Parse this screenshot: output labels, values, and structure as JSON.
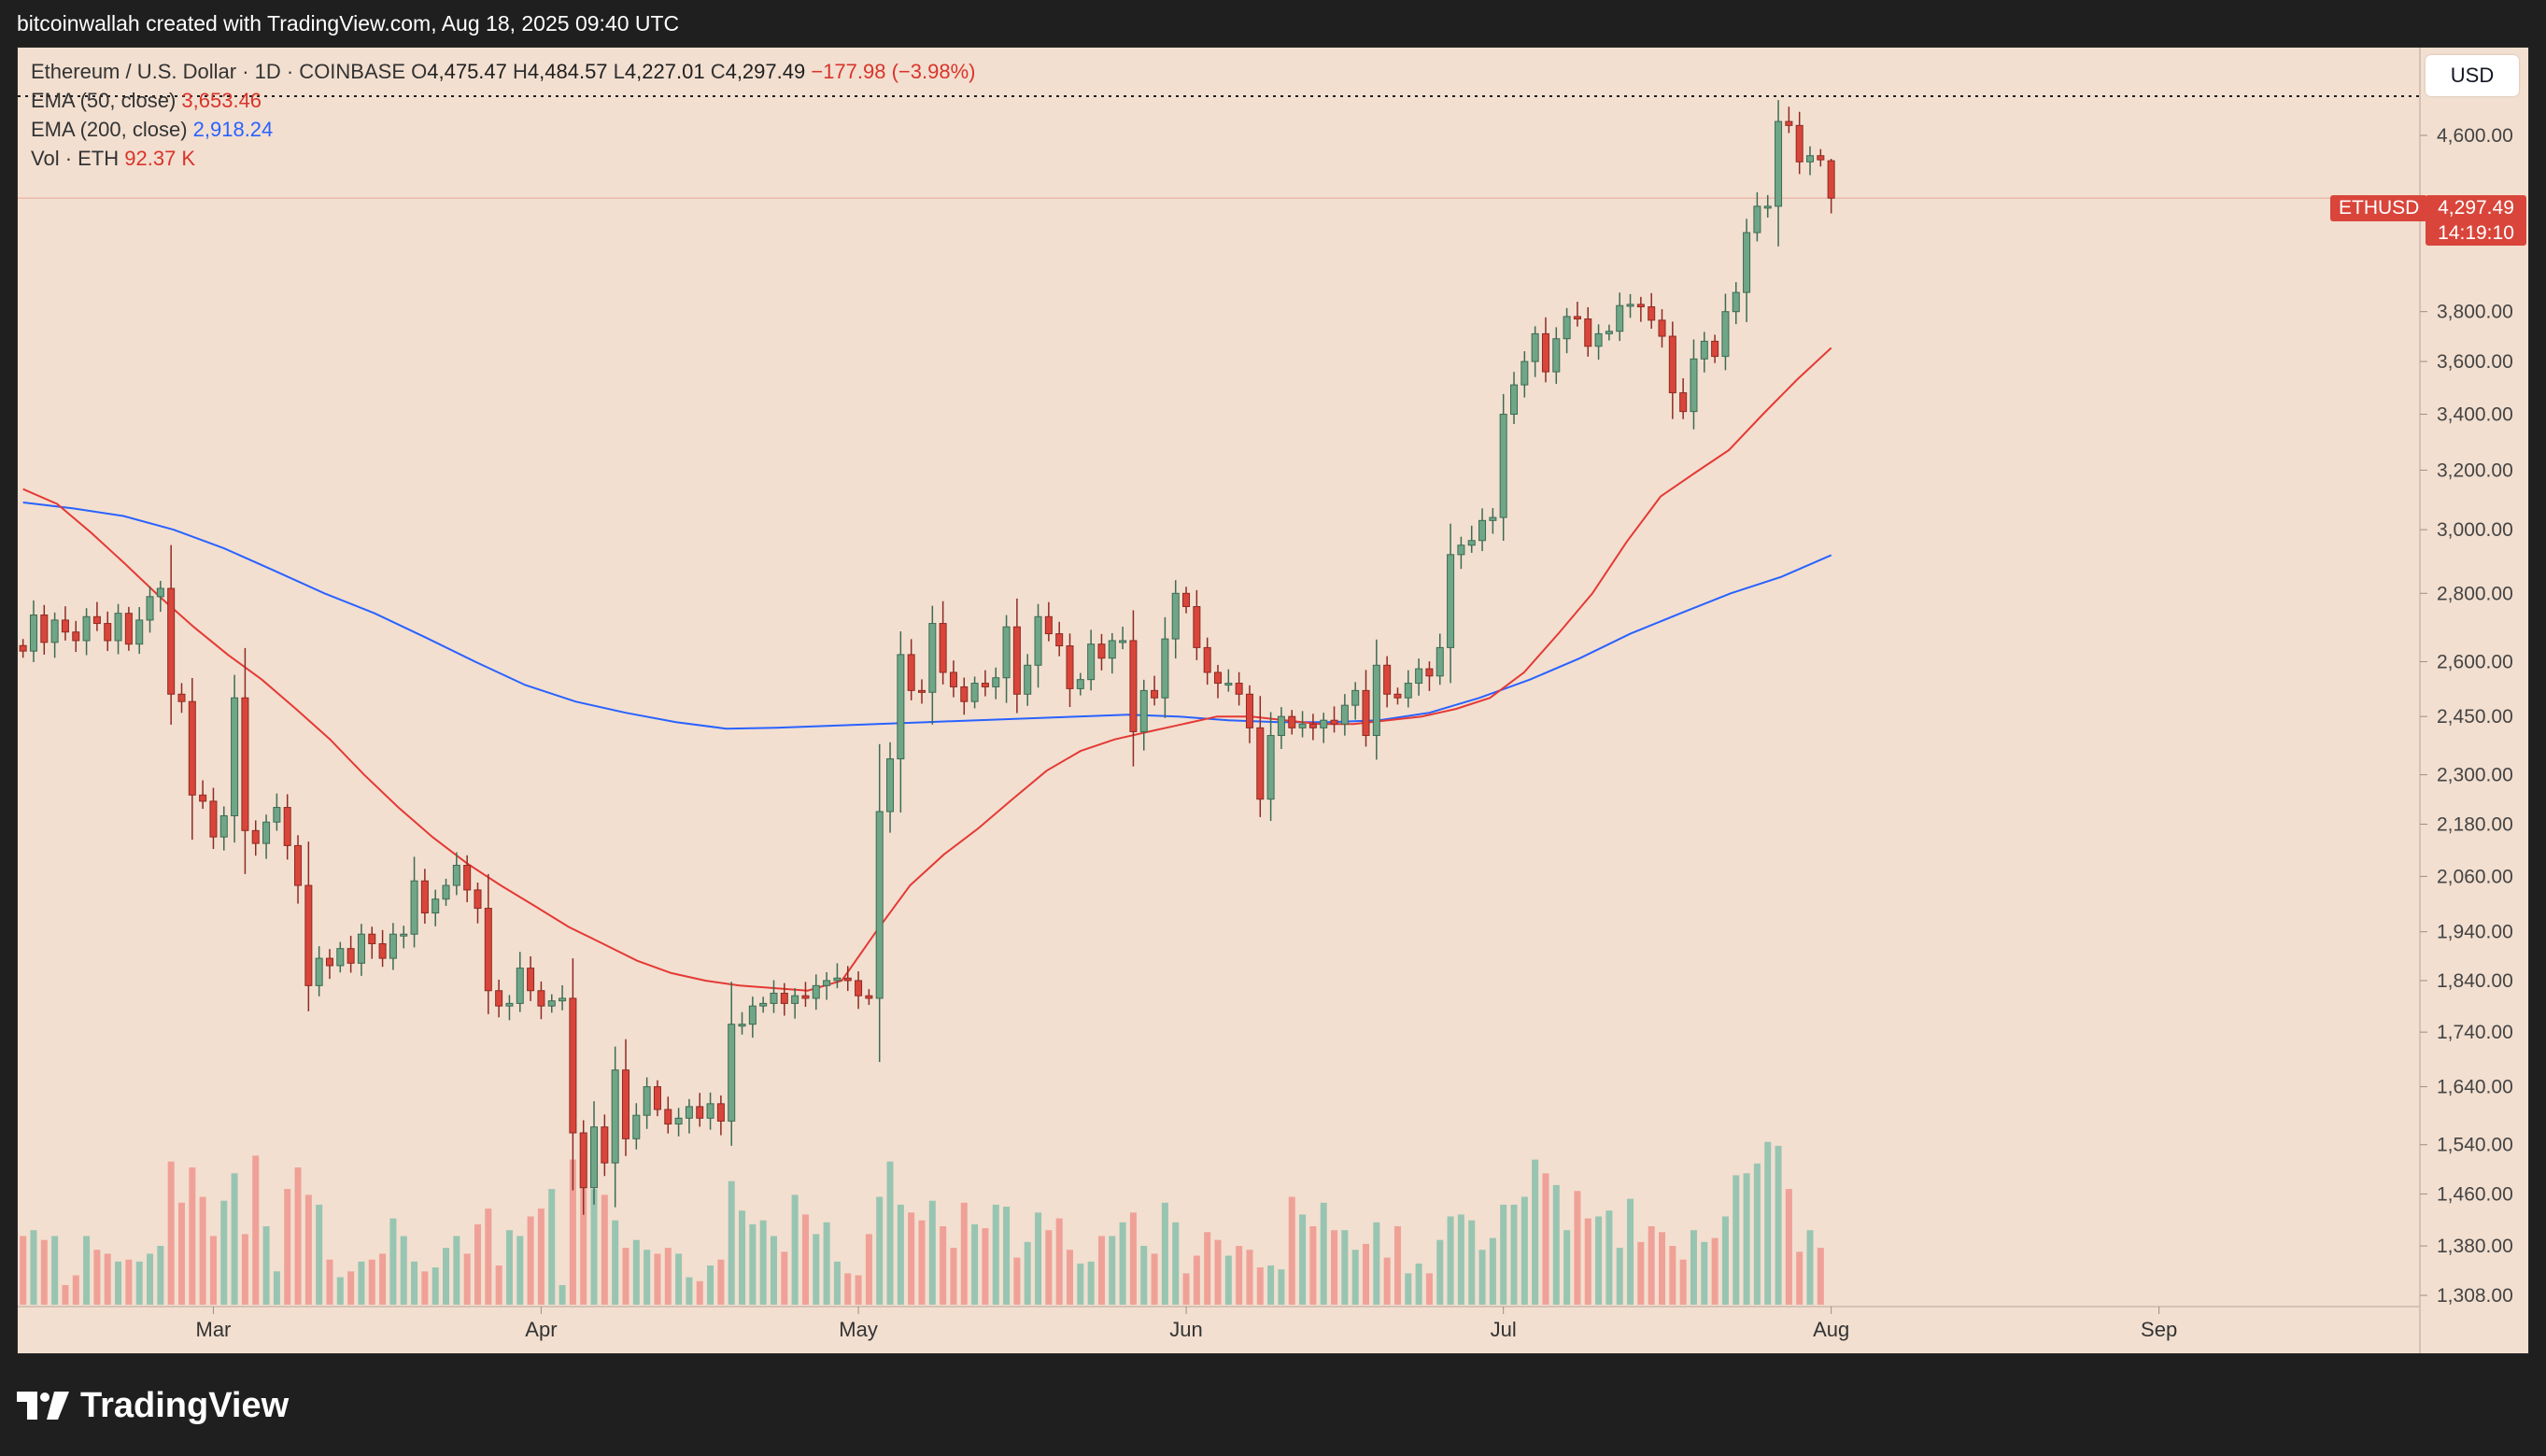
{
  "attribution": "bitcoinwallah created with TradingView.com, Aug 18, 2025 09:40 UTC",
  "brand": "TradingView",
  "currency_button": "USD",
  "legend": {
    "symbol_line": "Ethereum / U.S. Dollar · 1D · COINBASE",
    "open_label": "O",
    "open": "4,475.47",
    "high_label": "H",
    "high": "4,484.57",
    "low_label": "L",
    "low": "4,227.01",
    "close_label": "C",
    "close": "4,297.49",
    "change": "−177.98 (−3.98%)",
    "ema50_label": "EMA (50, close)",
    "ema50_value": "3,653.46",
    "ema200_label": "EMA (200, close)",
    "ema200_value": "2,918.24",
    "vol_label": "Vol · ETH",
    "vol_value": "92.37 K"
  },
  "last_price": {
    "ticker": "ETHUSD",
    "price": "4,297.49",
    "countdown": "14:19:10"
  },
  "colors": {
    "up": "#6fa688",
    "down": "#d9453a",
    "ema50": "#e53935",
    "ema200": "#2962ff",
    "vol_up": "#8ec2ad",
    "vol_down": "#ef9a90",
    "background": "#f2dfd0"
  },
  "chart_data": {
    "type": "candlestick",
    "title": "Ethereum / U.S. Dollar · 1D · COINBASE",
    "y_scale": "log",
    "price_ticks": [
      1308,
      1380,
      1460,
      1540,
      1640,
      1740,
      1840,
      1940,
      2060,
      2180,
      2300,
      2450,
      2600,
      2800,
      3000,
      3200,
      3400,
      3600,
      3800,
      4600
    ],
    "price_tick_labels": [
      "1,308.00",
      "1,380.00",
      "1,460.00",
      "1,540.00",
      "1,640.00",
      "1,740.00",
      "1,840.00",
      "1,940.00",
      "2,060.00",
      "2,180.00",
      "2,300.00",
      "2,450.00",
      "2,600.00",
      "2,800.00",
      "3,000.00",
      "3,200.00",
      "3,400.00",
      "3,600.00",
      "3,800.00",
      "4,600.00"
    ],
    "x_labels": [
      {
        "label": "Mar",
        "date": "2025-03-01"
      },
      {
        "label": "Apr",
        "date": "2025-04-01"
      },
      {
        "label": "May",
        "date": "2025-05-01"
      },
      {
        "label": "Jun",
        "date": "2025-06-01"
      },
      {
        "label": "Jul",
        "date": "2025-07-01"
      },
      {
        "label": "Aug",
        "date": "2025-08-01"
      },
      {
        "label": "Sep",
        "date": "2025-09-01"
      }
    ],
    "start_date": "2025-02-11",
    "x_range": [
      "2025-02-11",
      "2025-09-26"
    ],
    "closes": [
      2630,
      2735,
      2655,
      2720,
      2685,
      2660,
      2730,
      2710,
      2660,
      2740,
      2650,
      2720,
      2790,
      2815,
      2510,
      2490,
      2250,
      2235,
      2150,
      2200,
      2500,
      2165,
      2135,
      2185,
      2220,
      2130,
      2040,
      1830,
      1885,
      1870,
      1905,
      1875,
      1935,
      1915,
      1885,
      1935,
      1935,
      2050,
      1980,
      2010,
      2040,
      2085,
      2030,
      1990,
      1820,
      1790,
      1795,
      1865,
      1820,
      1790,
      1800,
      1805,
      1560,
      1470,
      1570,
      1510,
      1670,
      1550,
      1590,
      1640,
      1600,
      1575,
      1585,
      1605,
      1585,
      1610,
      1580,
      1755,
      1755,
      1790,
      1795,
      1815,
      1795,
      1810,
      1805,
      1830,
      1840,
      1845,
      1840,
      1810,
      1805,
      2210,
      2340,
      2620,
      2520,
      2515,
      2710,
      2570,
      2530,
      2490,
      2540,
      2530,
      2555,
      2700,
      2510,
      2590,
      2730,
      2680,
      2645,
      2525,
      2550,
      2650,
      2610,
      2660,
      2660,
      2410,
      2520,
      2500,
      2665,
      2800,
      2760,
      2640,
      2570,
      2540,
      2540,
      2510,
      2420,
      2240,
      2400,
      2450,
      2420,
      2430,
      2420,
      2440,
      2430,
      2480,
      2520,
      2400,
      2590,
      2510,
      2500,
      2540,
      2580,
      2560,
      2640,
      2920,
      2950,
      2965,
      3030,
      3040,
      3400,
      3510,
      3600,
      3710,
      3560,
      3690,
      3780,
      3770,
      3660,
      3710,
      3720,
      3825,
      3830,
      3820,
      3765,
      3700,
      3480,
      3410,
      3610,
      3680,
      3620,
      3800,
      3880,
      4140,
      4260,
      4260,
      4670,
      4650,
      4470,
      4500,
      4480,
      4297.49
    ],
    "volume_relative": [
      0.35,
      0.38,
      0.33,
      0.35,
      0.1,
      0.15,
      0.35,
      0.28,
      0.26,
      0.22,
      0.23,
      0.22,
      0.26,
      0.3,
      0.73,
      0.52,
      0.7,
      0.55,
      0.35,
      0.53,
      0.67,
      0.36,
      0.76,
      0.4,
      0.17,
      0.59,
      0.7,
      0.56,
      0.51,
      0.23,
      0.14,
      0.17,
      0.22,
      0.23,
      0.26,
      0.44,
      0.35,
      0.22,
      0.17,
      0.19,
      0.29,
      0.35,
      0.26,
      0.41,
      0.49,
      0.2,
      0.38,
      0.35,
      0.45,
      0.49,
      0.59,
      0.1,
      0.74,
      0.71,
      0.59,
      0.56,
      0.43,
      0.29,
      0.33,
      0.28,
      0.26,
      0.29,
      0.26,
      0.14,
      0.12,
      0.2,
      0.23,
      0.63,
      0.48,
      0.41,
      0.43,
      0.35,
      0.27,
      0.56,
      0.46,
      0.36,
      0.42,
      0.22,
      0.16,
      0.15,
      0.36,
      0.55,
      0.73,
      0.51,
      0.47,
      0.43,
      0.53,
      0.4,
      0.29,
      0.52,
      0.41,
      0.39,
      0.51,
      0.5,
      0.24,
      0.32,
      0.47,
      0.38,
      0.44,
      0.28,
      0.21,
      0.22,
      0.35,
      0.35,
      0.42,
      0.47,
      0.3,
      0.26,
      0.52,
      0.42,
      0.16,
      0.25,
      0.37,
      0.33,
      0.25,
      0.3,
      0.28,
      0.19,
      0.2,
      0.18,
      0.55,
      0.46,
      0.4,
      0.52,
      0.38,
      0.38,
      0.28,
      0.31,
      0.42,
      0.24,
      0.4,
      0.16,
      0.21,
      0.16,
      0.33,
      0.45,
      0.46,
      0.43,
      0.28,
      0.34,
      0.51,
      0.51,
      0.55,
      0.74,
      0.67,
      0.61,
      0.38,
      0.58,
      0.44,
      0.45,
      0.48,
      0.29,
      0.54,
      0.32,
      0.4,
      0.37,
      0.3,
      0.23,
      0.38,
      0.32,
      0.34,
      0.45,
      0.66,
      0.67,
      0.72,
      0.83,
      0.81,
      0.59,
      0.27,
      0.38,
      0.29
    ],
    "ema50": [
      3135,
      3085,
      2990,
      2890,
      2790,
      2700,
      2620,
      2550,
      2470,
      2390,
      2300,
      2220,
      2150,
      2090,
      2040,
      1995,
      1950,
      1915,
      1880,
      1855,
      1840,
      1830,
      1825,
      1820,
      1840,
      1940,
      2040,
      2110,
      2170,
      2240,
      2310,
      2360,
      2390,
      2410,
      2430,
      2450,
      2450,
      2440,
      2430,
      2430,
      2440,
      2450,
      2470,
      2500,
      2570,
      2680,
      2800,
      2960,
      3110,
      3190,
      3270,
      3400,
      3530,
      3653.46
    ],
    "ema200": [
      3090,
      3070,
      3045,
      3000,
      2940,
      2870,
      2800,
      2740,
      2670,
      2600,
      2535,
      2490,
      2460,
      2435,
      2418,
      2420,
      2425,
      2430,
      2435,
      2440,
      2445,
      2450,
      2455,
      2450,
      2440,
      2435,
      2435,
      2440,
      2460,
      2500,
      2550,
      2610,
      2680,
      2740,
      2800,
      2850,
      2918.24
    ]
  }
}
